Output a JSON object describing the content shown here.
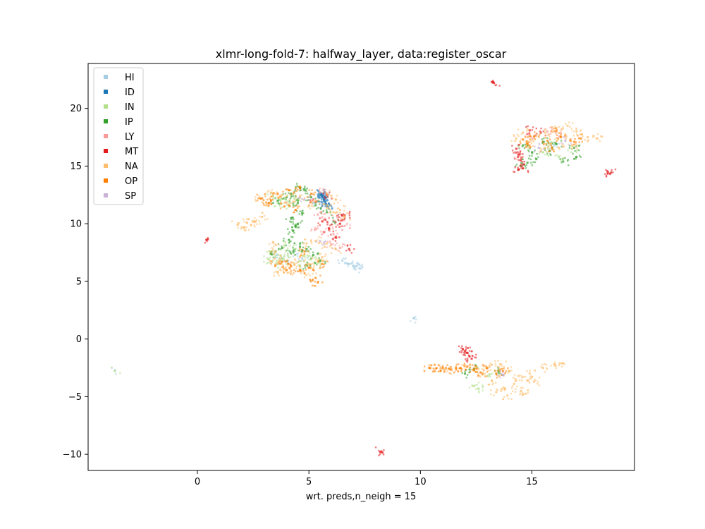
{
  "chart_data": {
    "type": "scatter",
    "title": "xlmr-long-fold-7: halfway_layer, data:register_oscar",
    "xlabel": "wrt. preds,n_neigh = 15",
    "ylabel": "",
    "xlim": [
      -4.9,
      19.6
    ],
    "ylim": [
      -11.4,
      23.9
    ],
    "xticks": [
      0,
      5,
      10,
      15
    ],
    "xtick_labels": [
      "0",
      "5",
      "10",
      "15"
    ],
    "yticks": [
      -10,
      -5,
      0,
      5,
      10,
      15,
      20
    ],
    "ytick_labels": [
      "−10",
      "−5",
      "0",
      "5",
      "10",
      "15",
      "20"
    ],
    "grid": false,
    "legend_position": "upper-left",
    "series": [
      {
        "name": "HI",
        "color": "#a6cee3",
        "points": [
          [
            9.7,
            1.8
          ],
          [
            9.72,
            1.82
          ],
          [
            6.5,
            6.8
          ],
          [
            6.8,
            6.5
          ],
          [
            7.1,
            6.3
          ],
          [
            7.3,
            6.1
          ],
          [
            7.0,
            6.35
          ],
          [
            4.3,
            7.5
          ],
          [
            4.7,
            7.0
          ],
          [
            3.6,
            7.3
          ],
          [
            4.0,
            6.8
          ],
          [
            5.6,
            12.4
          ],
          [
            5.2,
            11.8
          ],
          [
            16.0,
            16.8
          ],
          [
            -3.7,
            -2.7
          ]
        ]
      },
      {
        "name": "ID",
        "color": "#1f78b4",
        "points": [
          [
            5.55,
            12.6
          ],
          [
            5.6,
            12.4
          ],
          [
            5.65,
            12.2
          ],
          [
            5.7,
            12.0
          ],
          [
            5.72,
            11.8
          ],
          [
            5.58,
            12.55
          ],
          [
            5.68,
            12.1
          ],
          [
            5.75,
            11.7
          ],
          [
            5.5,
            12.7
          ],
          [
            5.62,
            12.3
          ],
          [
            5.8,
            11.5
          ]
        ]
      },
      {
        "name": "IN",
        "color": "#b2df8a",
        "points": [
          [
            3.5,
            7.2
          ],
          [
            3.8,
            7.0
          ],
          [
            4.0,
            6.8
          ],
          [
            4.2,
            7.4
          ],
          [
            3.6,
            6.5
          ],
          [
            4.4,
            7.8
          ],
          [
            3.3,
            7.6
          ],
          [
            4.8,
            7.2
          ],
          [
            5.1,
            6.9
          ],
          [
            5.4,
            6.6
          ],
          [
            3.9,
            8.1
          ],
          [
            4.6,
            6.4
          ],
          [
            3.2,
            6.9
          ],
          [
            4.1,
            11.5
          ],
          [
            3.9,
            12.2
          ],
          [
            3.6,
            11.8
          ],
          [
            4.5,
            12.0
          ],
          [
            3.4,
            12.4
          ],
          [
            15.5,
            16.2
          ],
          [
            16.2,
            15.8
          ],
          [
            16.8,
            16.5
          ],
          [
            15.9,
            17.0
          ],
          [
            12.4,
            -4.1
          ],
          [
            12.6,
            -4.3
          ],
          [
            13.0,
            -3.2
          ],
          [
            -3.7,
            -2.8
          ]
        ]
      },
      {
        "name": "IP",
        "color": "#33a02c",
        "points": [
          [
            4.2,
            12.6
          ],
          [
            4.5,
            11.8
          ],
          [
            4.7,
            10.9
          ],
          [
            4.5,
            10.0
          ],
          [
            4.3,
            9.4
          ],
          [
            4.1,
            8.6
          ],
          [
            4.6,
            8.0
          ],
          [
            4.9,
            7.8
          ],
          [
            5.2,
            7.3
          ],
          [
            4.3,
            7.6
          ],
          [
            3.8,
            7.9
          ],
          [
            4.0,
            12.3
          ],
          [
            3.6,
            12.0
          ],
          [
            4.8,
            12.9
          ],
          [
            5.1,
            12.3
          ],
          [
            5.3,
            11.6
          ],
          [
            3.3,
            7.4
          ],
          [
            5.5,
            6.8
          ],
          [
            4.4,
            9.8
          ],
          [
            4.2,
            10.5
          ],
          [
            5.8,
            11.0
          ],
          [
            6.1,
            10.2
          ],
          [
            4.9,
            6.4
          ],
          [
            4.6,
            13.1
          ],
          [
            14.6,
            16.8
          ],
          [
            15.2,
            15.6
          ],
          [
            15.8,
            16.3
          ],
          [
            16.4,
            15.4
          ],
          [
            17.0,
            15.8
          ],
          [
            15.5,
            17.1
          ],
          [
            16.1,
            16.9
          ],
          [
            16.9,
            16.6
          ],
          [
            14.5,
            15.0
          ],
          [
            14.8,
            15.3
          ],
          [
            15.0,
            16.2
          ],
          [
            12.4,
            -2.6
          ],
          [
            12.0,
            -3.0
          ],
          [
            13.5,
            -2.8
          ]
        ]
      },
      {
        "name": "LY",
        "color": "#fb9a99",
        "points": [
          [
            5.4,
            10.8
          ],
          [
            5.9,
            10.5
          ],
          [
            6.3,
            9.9
          ],
          [
            6.5,
            10.3
          ],
          [
            5.7,
            9.3
          ],
          [
            6.1,
            9.1
          ],
          [
            6.6,
            9.8
          ],
          [
            5.3,
            9.5
          ],
          [
            6.0,
            8.2
          ],
          [
            6.4,
            7.9
          ],
          [
            5.5,
            12.7
          ],
          [
            14.3,
            16.2
          ],
          [
            14.4,
            15.9
          ],
          [
            15.7,
            18.0
          ],
          [
            16.3,
            17.8
          ],
          [
            14.9,
            17.6
          ]
        ]
      },
      {
        "name": "MT",
        "color": "#e31a1c",
        "points": [
          [
            13.2,
            22.3
          ],
          [
            13.3,
            22.2
          ],
          [
            13.25,
            22.25
          ],
          [
            0.4,
            8.6
          ],
          [
            0.45,
            8.62
          ],
          [
            8.2,
            -9.8
          ],
          [
            8.25,
            -9.75
          ],
          [
            8.3,
            -9.85
          ],
          [
            18.4,
            14.4
          ],
          [
            18.5,
            14.35
          ],
          [
            11.9,
            -0.9
          ],
          [
            12.1,
            -1.2
          ],
          [
            12.2,
            -1.5
          ],
          [
            12.3,
            -1.7
          ],
          [
            12.0,
            -1.05
          ],
          [
            14.3,
            16.5
          ],
          [
            14.4,
            16.0
          ],
          [
            14.5,
            15.5
          ],
          [
            14.6,
            14.8
          ],
          [
            14.4,
            14.7
          ],
          [
            14.9,
            18.1
          ],
          [
            15.4,
            17.9
          ],
          [
            6.5,
            10.7
          ],
          [
            6.6,
            10.75
          ],
          [
            5.6,
            10.2
          ],
          [
            6.4,
            10.0
          ],
          [
            6.8,
            7.8
          ],
          [
            5.9,
            9.6
          ],
          [
            6.2,
            8.8
          ],
          [
            5.3,
            11.9
          ],
          [
            5.8,
            12.5
          ]
        ]
      },
      {
        "name": "NA",
        "color": "#fdbf6f",
        "points": [
          [
            1.8,
            9.9
          ],
          [
            2.1,
            9.7
          ],
          [
            2.4,
            9.9
          ],
          [
            2.6,
            10.2
          ],
          [
            2.3,
            10.4
          ],
          [
            2.9,
            10.6
          ],
          [
            3.1,
            11.6
          ],
          [
            2.8,
            12.2
          ],
          [
            3.3,
            12.7
          ],
          [
            3.8,
            12.5
          ],
          [
            4.3,
            11.9
          ],
          [
            4.6,
            12.4
          ],
          [
            5.0,
            11.6
          ],
          [
            5.3,
            12.0
          ],
          [
            5.8,
            11.4
          ],
          [
            6.1,
            11.0
          ],
          [
            6.6,
            10.6
          ],
          [
            6.4,
            11.2
          ],
          [
            3.4,
            8.4
          ],
          [
            3.5,
            7.6
          ],
          [
            3.7,
            6.9
          ],
          [
            3.9,
            6.1
          ],
          [
            4.2,
            5.9
          ],
          [
            4.8,
            5.7
          ],
          [
            5.2,
            6.0
          ],
          [
            5.4,
            6.7
          ],
          [
            5.6,
            7.1
          ],
          [
            5.0,
            6.5
          ],
          [
            4.6,
            7.1
          ],
          [
            4.3,
            6.6
          ],
          [
            3.6,
            5.8
          ],
          [
            4.9,
            8.3
          ],
          [
            5.3,
            8.5
          ],
          [
            5.7,
            8.0
          ],
          [
            6.2,
            7.8
          ],
          [
            5.8,
            12.6
          ],
          [
            6.2,
            12.1
          ],
          [
            14.3,
            17.4
          ],
          [
            14.6,
            17.9
          ],
          [
            15.1,
            17.5
          ],
          [
            15.6,
            17.9
          ],
          [
            16.1,
            18.3
          ],
          [
            16.5,
            17.7
          ],
          [
            17.0,
            18.0
          ],
          [
            17.5,
            17.5
          ],
          [
            17.9,
            17.4
          ],
          [
            16.8,
            16.8
          ],
          [
            16.2,
            16.6
          ],
          [
            15.4,
            16.3
          ],
          [
            14.9,
            16.8
          ],
          [
            16.6,
            18.5
          ],
          [
            10.4,
            -2.5
          ],
          [
            10.9,
            -2.6
          ],
          [
            11.4,
            -2.7
          ],
          [
            12.0,
            -2.3
          ],
          [
            12.6,
            -2.6
          ],
          [
            13.1,
            -2.4
          ],
          [
            13.6,
            -2.6
          ],
          [
            14.0,
            -2.8
          ],
          [
            14.4,
            -3.2
          ],
          [
            14.8,
            -3.6
          ],
          [
            14.2,
            -3.9
          ],
          [
            13.8,
            -4.3
          ],
          [
            13.4,
            -4.6
          ],
          [
            13.9,
            -4.9
          ],
          [
            14.5,
            -4.5
          ],
          [
            15.1,
            -3.7
          ],
          [
            14.9,
            -3.0
          ],
          [
            13.2,
            -3.6
          ],
          [
            12.8,
            -3.0
          ],
          [
            15.5,
            -2.5
          ],
          [
            16.0,
            -2.2
          ],
          [
            16.4,
            -2.1
          ],
          [
            13.6,
            -2.2
          ],
          [
            14.6,
            -4.8
          ]
        ]
      },
      {
        "name": "OP",
        "color": "#ff7f00",
        "points": [
          [
            2.9,
            12.2
          ],
          [
            3.2,
            11.8
          ],
          [
            3.6,
            12.6
          ],
          [
            4.1,
            12.9
          ],
          [
            4.6,
            13.2
          ],
          [
            5.1,
            12.6
          ],
          [
            3.9,
            11.5
          ],
          [
            4.4,
            11.2
          ],
          [
            3.3,
            12.0
          ],
          [
            3.8,
            6.7
          ],
          [
            4.2,
            6.3
          ],
          [
            4.6,
            6.0
          ],
          [
            5.0,
            6.2
          ],
          [
            5.3,
            5.3
          ],
          [
            5.4,
            4.9
          ],
          [
            3.5,
            6.4
          ],
          [
            4.0,
            6.0
          ],
          [
            5.6,
            6.5
          ],
          [
            4.8,
            7.6
          ],
          [
            14.6,
            17.3
          ],
          [
            15.1,
            17.6
          ],
          [
            15.7,
            17.2
          ],
          [
            16.3,
            17.5
          ],
          [
            16.9,
            17.1
          ],
          [
            17.2,
            17.4
          ],
          [
            15.9,
            16.6
          ],
          [
            14.8,
            16.9
          ],
          [
            16.1,
            18.1
          ],
          [
            10.4,
            -2.5
          ],
          [
            10.7,
            -2.55
          ],
          [
            11.0,
            -2.5
          ],
          [
            11.3,
            -2.6
          ],
          [
            11.6,
            -2.55
          ],
          [
            11.8,
            -2.5
          ],
          [
            12.1,
            -2.4
          ],
          [
            12.4,
            -2.7
          ],
          [
            12.7,
            -2.9
          ],
          [
            13.0,
            -2.5
          ],
          [
            13.4,
            -3.0
          ],
          [
            13.7,
            -2.8
          ]
        ]
      },
      {
        "name": "SP",
        "color": "#cab2d6",
        "points": [
          [
            15.3,
            16.6
          ],
          [
            16.5,
            17.2
          ],
          [
            4.8,
            12.1
          ],
          [
            5.5,
            8.5
          ],
          [
            13.7,
            -3.1
          ]
        ]
      }
    ]
  }
}
